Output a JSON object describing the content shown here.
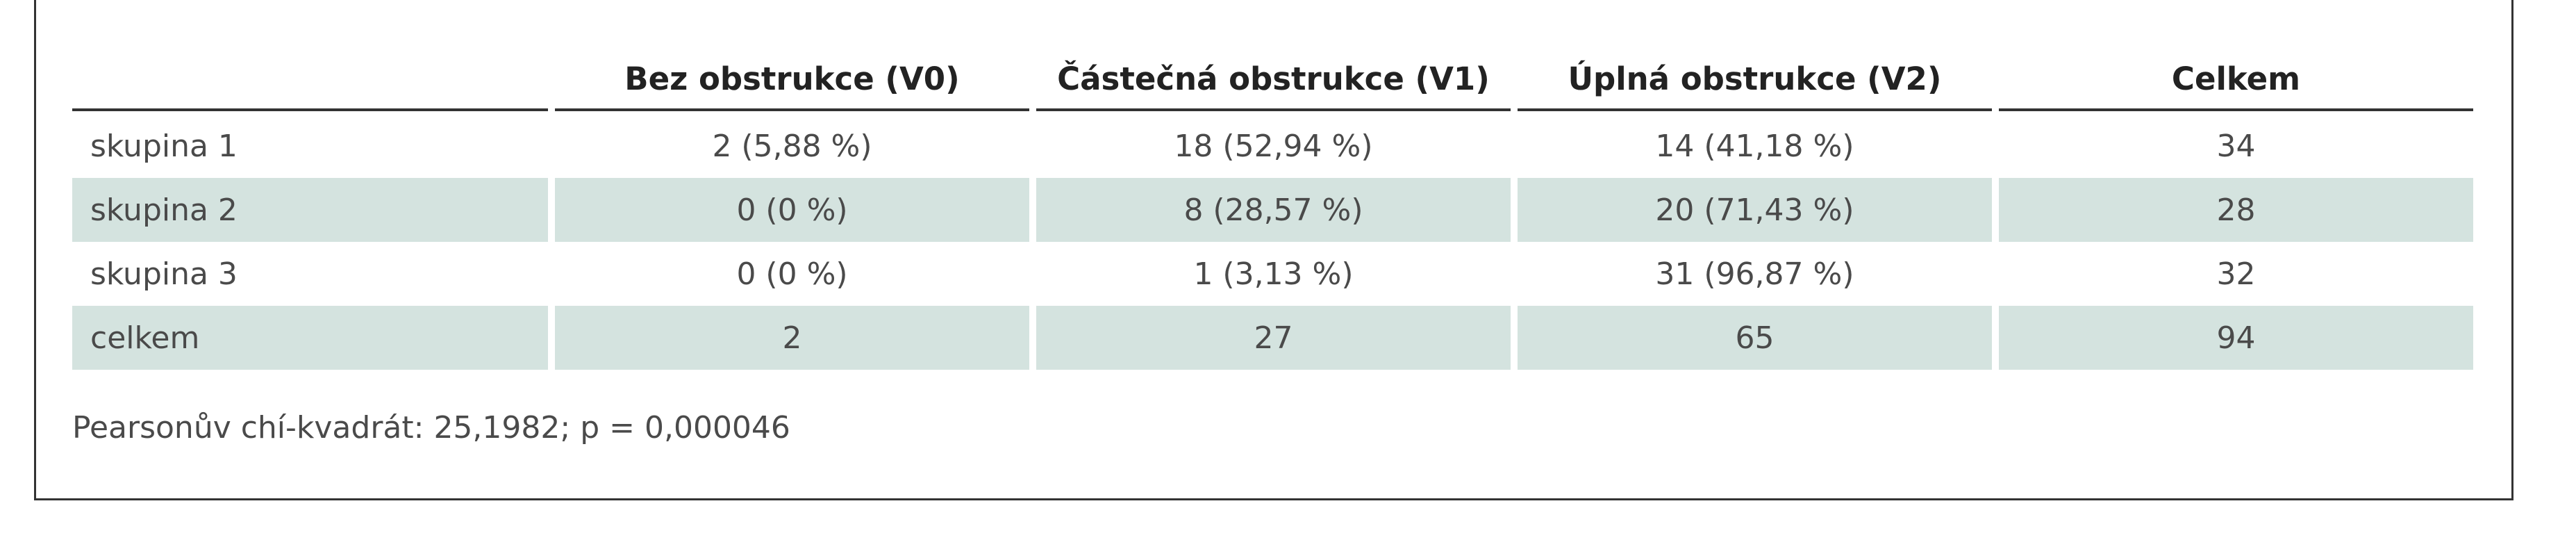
{
  "table": {
    "columns": [
      "",
      "Bez obstrukce (V0)",
      "Částečná obstrukce (V1)",
      "Úplná obstrukce (V2)",
      "Celkem"
    ],
    "rows": [
      {
        "label": "skupina 1",
        "v0": "2 (5,88 %)",
        "v1": "18 (52,94 %)",
        "v2": "14 (41,18 %)",
        "total": "34",
        "shaded": false
      },
      {
        "label": "skupina 2",
        "v0": "0 (0 %)",
        "v1": "8 (28,57 %)",
        "v2": "20 (71,43 %)",
        "total": "28",
        "shaded": true
      },
      {
        "label": "skupina 3",
        "v0": "0 (0 %)",
        "v1": "1 (3,13 %)",
        "v2": "31 (96,87 %)",
        "total": "32",
        "shaded": false
      },
      {
        "label": "celkem",
        "v0": "2",
        "v1": "27",
        "v2": "65",
        "total": "94",
        "shaded": true
      }
    ]
  },
  "footnote": "Pearsonův chí-kvadrát: 25,1982; p = 0,000046"
}
